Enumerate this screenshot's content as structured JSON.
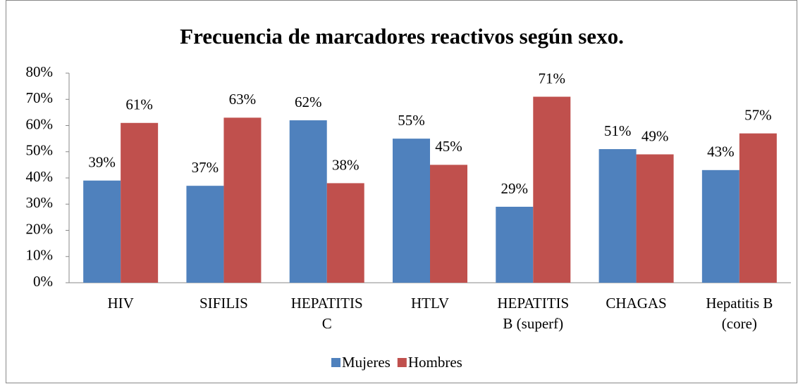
{
  "chart_data": {
    "type": "bar",
    "title": "Frecuencia de marcadores reactivos según sexo.",
    "categories": [
      [
        "HIV"
      ],
      [
        "SIFILIS"
      ],
      [
        "HEPATITIS",
        "C"
      ],
      [
        "HTLV"
      ],
      [
        "HEPATITIS",
        "B (superf)"
      ],
      [
        "CHAGAS"
      ],
      [
        "Hepatitis B",
        "(core)"
      ]
    ],
    "series": [
      {
        "name": "Mujeres",
        "color": "#4f81bd",
        "values": [
          39,
          37,
          62,
          55,
          29,
          51,
          43
        ],
        "value_labels": [
          "39%",
          "37%",
          "62%",
          "55%",
          "29%",
          "51%",
          "43%"
        ]
      },
      {
        "name": "Hombres",
        "color": "#c0504d",
        "values": [
          61,
          63,
          38,
          45,
          71,
          49,
          57
        ],
        "value_labels": [
          "61%",
          "63%",
          "38%",
          "45%",
          "71%",
          "49%",
          "57%"
        ]
      }
    ],
    "ylim": [
      0,
      80
    ],
    "yticks": [
      {
        "value": 0,
        "label": "0%"
      },
      {
        "value": 10,
        "label": "10%"
      },
      {
        "value": 20,
        "label": "20%"
      },
      {
        "value": 30,
        "label": "30%"
      },
      {
        "value": 40,
        "label": "40%"
      },
      {
        "value": 50,
        "label": "50%"
      },
      {
        "value": 60,
        "label": "60%"
      },
      {
        "value": 70,
        "label": "70%"
      },
      {
        "value": 80,
        "label": "80%"
      }
    ],
    "legend": "bottom"
  }
}
